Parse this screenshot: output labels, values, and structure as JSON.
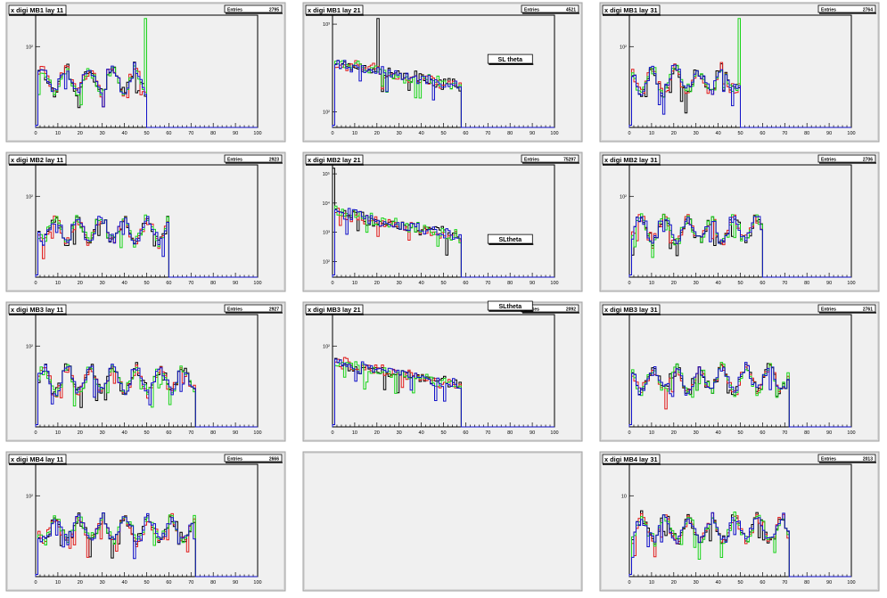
{
  "canvas": {
    "title": "",
    "background": "#ffffff"
  },
  "colors": {
    "frame": "#d9d9d9",
    "plot_bg": "#f0f0f0",
    "axis": "#000000",
    "series": {
      "black": "#000000",
      "red": "#e01b1b",
      "green": "#19d419",
      "blue": "#1010c8"
    }
  },
  "chart_data": [
    {
      "type": "histogram",
      "title": "x digi MB1 lay 11",
      "stats": {
        "label": "Entries",
        "value": "2795"
      },
      "xlim": [
        0,
        100
      ],
      "xticks": [
        "0",
        "10",
        "20",
        "30",
        "40",
        "50",
        "60",
        "70",
        "80",
        "90",
        "100"
      ],
      "ylog": true,
      "ytick_labels": [
        "10²"
      ],
      "channels": 50,
      "spike": {
        "x": 49,
        "series": "green"
      },
      "box": null
    },
    {
      "type": "histogram",
      "title": "x digi MB1 lay 21",
      "stats": {
        "label": "Entries",
        "value": "4521"
      },
      "xlim": [
        0,
        100
      ],
      "xticks": [
        "0",
        "10",
        "20",
        "30",
        "40",
        "50",
        "60",
        "70",
        "80",
        "90",
        "100"
      ],
      "ylog": true,
      "ytick_labels": [
        "10³",
        "10²"
      ],
      "channels": 58,
      "spike": {
        "x": 20,
        "series": "black"
      },
      "box": {
        "text": "SL theta"
      }
    },
    {
      "type": "histogram",
      "title": "x digi MB1 lay 31",
      "stats": {
        "label": "Entries",
        "value": "2764"
      },
      "xlim": [
        0,
        100
      ],
      "xticks": [
        "0",
        "10",
        "20",
        "30",
        "40",
        "50",
        "60",
        "70",
        "80",
        "90",
        "100"
      ],
      "ylog": true,
      "ytick_labels": [
        "10²"
      ],
      "channels": 50,
      "spike": {
        "x": 49,
        "series": "green"
      },
      "box": null
    },
    {
      "type": "histogram",
      "title": "x digi MB2 lay 11",
      "stats": {
        "label": "Entries",
        "value": "2923"
      },
      "xlim": [
        0,
        100
      ],
      "xticks": [
        "0",
        "10",
        "20",
        "30",
        "40",
        "50",
        "60",
        "70",
        "80",
        "90",
        "100"
      ],
      "ylog": true,
      "ytick_labels": [
        "10²"
      ],
      "channels": 60,
      "spike": null,
      "box": null
    },
    {
      "type": "histogram",
      "title": "x digi MB2 lay 21",
      "stats": {
        "label": "Entries",
        "value": "75297"
      },
      "xlim": [
        0,
        100
      ],
      "xticks": [
        "0",
        "10",
        "20",
        "30",
        "40",
        "50",
        "60",
        "70",
        "80",
        "90",
        "100"
      ],
      "ylog": true,
      "ytick_labels": [
        "10⁵",
        "10⁴",
        "10³",
        "10²"
      ],
      "channels": 58,
      "spike": {
        "x": 0,
        "series": "black"
      },
      "box": {
        "text": "SLtheta"
      }
    },
    {
      "type": "histogram",
      "title": "x digi MB2 lay 31",
      "stats": {
        "label": "Entries",
        "value": "2706"
      },
      "xlim": [
        0,
        100
      ],
      "xticks": [
        "0",
        "10",
        "20",
        "30",
        "40",
        "50",
        "60",
        "70",
        "80",
        "90",
        "100"
      ],
      "ylog": true,
      "ytick_labels": [
        "10²"
      ],
      "channels": 60,
      "spike": null,
      "box": null
    },
    {
      "type": "histogram",
      "title": "x digi MB3 lay 11",
      "stats": {
        "label": "Entries",
        "value": "2927"
      },
      "xlim": [
        0,
        100
      ],
      "xticks": [
        "0",
        "10",
        "20",
        "30",
        "40",
        "50",
        "60",
        "70",
        "80",
        "90",
        "100"
      ],
      "ylog": true,
      "ytick_labels": [
        "10²"
      ],
      "channels": 72,
      "spike": null,
      "box": null
    },
    {
      "type": "histogram",
      "title": "x digi MB3 lay 21",
      "stats": {
        "label": "Entries",
        "value": "2092"
      },
      "xlim": [
        0,
        100
      ],
      "xticks": [
        "0",
        "10",
        "20",
        "30",
        "40",
        "50",
        "60",
        "70",
        "80",
        "90",
        "100"
      ],
      "ylog": true,
      "ytick_labels": [
        "10²"
      ],
      "channels": 58,
      "spike": null,
      "box": {
        "text": "SLtheta"
      }
    },
    {
      "type": "histogram",
      "title": "x digi MB3 lay 31",
      "stats": {
        "label": "Entries",
        "value": "2761"
      },
      "xlim": [
        0,
        100
      ],
      "xticks": [
        "0",
        "10",
        "20",
        "30",
        "40",
        "50",
        "60",
        "70",
        "80",
        "90",
        "100"
      ],
      "ylog": true,
      "ytick_labels": [],
      "channels": 72,
      "spike": null,
      "box": null
    },
    {
      "type": "histogram",
      "title": "x digi MB4 lay 11",
      "stats": {
        "label": "Entries",
        "value": "2666"
      },
      "xlim": [
        0,
        100
      ],
      "xticks": [
        "0",
        "10",
        "20",
        "30",
        "40",
        "50",
        "60",
        "70",
        "80",
        "90",
        "100"
      ],
      "ylog": true,
      "ytick_labels": [
        "10²"
      ],
      "channels": 72,
      "spike": null,
      "box": null
    },
    null,
    {
      "type": "histogram",
      "title": "x digi MB4 lay 31",
      "stats": {
        "label": "Entries",
        "value": "2013"
      },
      "xlim": [
        0,
        100
      ],
      "xticks": [
        "0",
        "10",
        "20",
        "30",
        "40",
        "50",
        "60",
        "70",
        "80",
        "90",
        "100"
      ],
      "ylog": true,
      "ytick_labels": [
        "10"
      ],
      "channels": 72,
      "spike": null,
      "box": null
    }
  ]
}
